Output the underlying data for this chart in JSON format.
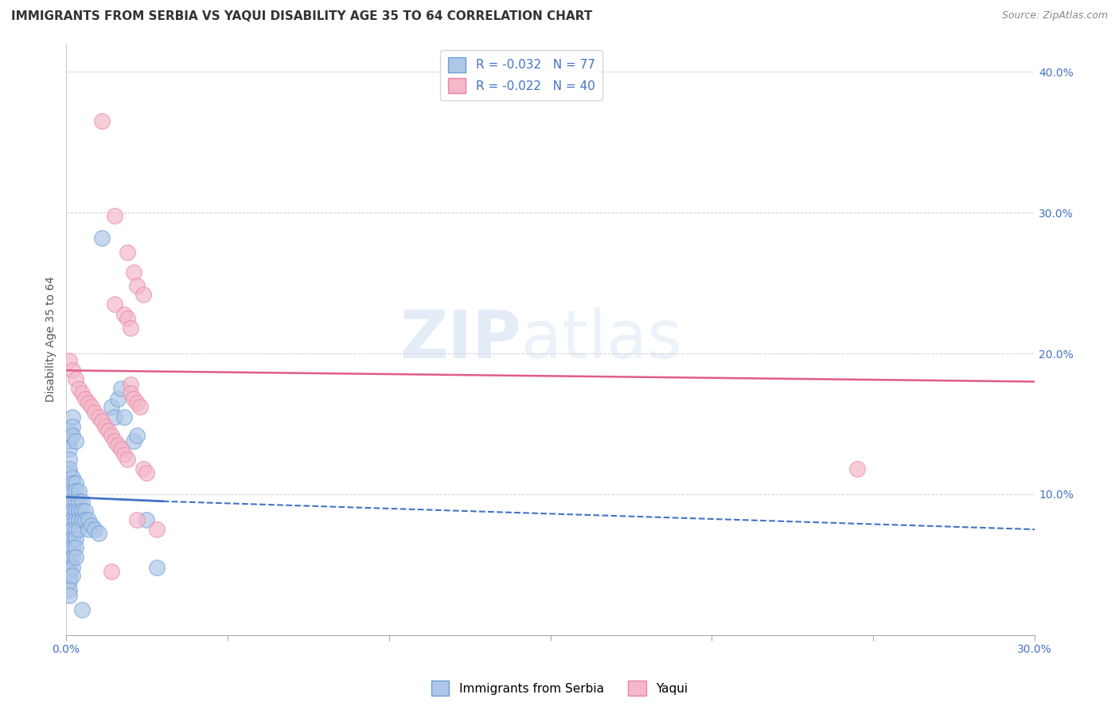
{
  "title": "IMMIGRANTS FROM SERBIA VS YAQUI DISABILITY AGE 35 TO 64 CORRELATION CHART",
  "source": "Source: ZipAtlas.com",
  "ylabel": "Disability Age 35 to 64",
  "xlim": [
    0.0,
    0.3
  ],
  "ylim": [
    0.0,
    0.42
  ],
  "xticks": [
    0.0,
    0.05,
    0.1,
    0.15,
    0.2,
    0.25,
    0.3
  ],
  "yticks": [
    0.0,
    0.1,
    0.2,
    0.3,
    0.4
  ],
  "ytick_labels_left": [
    "",
    "",
    "",
    "",
    ""
  ],
  "ytick_labels_right": [
    "",
    "10.0%",
    "20.0%",
    "30.0%",
    "40.0%"
  ],
  "xtick_labels": [
    "0.0%",
    "",
    "",
    "",
    "",
    "",
    "30.0%"
  ],
  "watermark": "ZIPatlas",
  "serbia_scatter": [
    [
      0.001,
      0.115
    ],
    [
      0.001,
      0.108
    ],
    [
      0.001,
      0.102
    ],
    [
      0.001,
      0.095
    ],
    [
      0.001,
      0.088
    ],
    [
      0.001,
      0.082
    ],
    [
      0.001,
      0.098
    ],
    [
      0.001,
      0.092
    ],
    [
      0.001,
      0.105
    ],
    [
      0.001,
      0.078
    ],
    [
      0.001,
      0.072
    ],
    [
      0.001,
      0.068
    ],
    [
      0.001,
      0.062
    ],
    [
      0.001,
      0.058
    ],
    [
      0.001,
      0.052
    ],
    [
      0.001,
      0.048
    ],
    [
      0.001,
      0.042
    ],
    [
      0.001,
      0.038
    ],
    [
      0.001,
      0.032
    ],
    [
      0.001,
      0.028
    ],
    [
      0.001,
      0.145
    ],
    [
      0.001,
      0.138
    ],
    [
      0.001,
      0.132
    ],
    [
      0.001,
      0.125
    ],
    [
      0.001,
      0.118
    ],
    [
      0.002,
      0.112
    ],
    [
      0.002,
      0.108
    ],
    [
      0.002,
      0.102
    ],
    [
      0.002,
      0.095
    ],
    [
      0.002,
      0.088
    ],
    [
      0.002,
      0.082
    ],
    [
      0.002,
      0.075
    ],
    [
      0.002,
      0.068
    ],
    [
      0.002,
      0.062
    ],
    [
      0.002,
      0.055
    ],
    [
      0.002,
      0.048
    ],
    [
      0.002,
      0.042
    ],
    [
      0.002,
      0.155
    ],
    [
      0.002,
      0.148
    ],
    [
      0.002,
      0.142
    ],
    [
      0.003,
      0.108
    ],
    [
      0.003,
      0.102
    ],
    [
      0.003,
      0.095
    ],
    [
      0.003,
      0.088
    ],
    [
      0.003,
      0.082
    ],
    [
      0.003,
      0.075
    ],
    [
      0.003,
      0.068
    ],
    [
      0.003,
      0.062
    ],
    [
      0.003,
      0.055
    ],
    [
      0.003,
      0.138
    ],
    [
      0.004,
      0.102
    ],
    [
      0.004,
      0.095
    ],
    [
      0.004,
      0.088
    ],
    [
      0.004,
      0.082
    ],
    [
      0.004,
      0.075
    ],
    [
      0.005,
      0.095
    ],
    [
      0.005,
      0.088
    ],
    [
      0.005,
      0.082
    ],
    [
      0.006,
      0.088
    ],
    [
      0.006,
      0.082
    ],
    [
      0.007,
      0.082
    ],
    [
      0.007,
      0.075
    ],
    [
      0.008,
      0.078
    ],
    [
      0.009,
      0.075
    ],
    [
      0.01,
      0.072
    ],
    [
      0.011,
      0.282
    ],
    [
      0.014,
      0.162
    ],
    [
      0.015,
      0.155
    ],
    [
      0.016,
      0.168
    ],
    [
      0.017,
      0.175
    ],
    [
      0.021,
      0.138
    ],
    [
      0.022,
      0.142
    ],
    [
      0.025,
      0.082
    ],
    [
      0.018,
      0.155
    ],
    [
      0.028,
      0.048
    ],
    [
      0.005,
      0.018
    ]
  ],
  "yaqui_scatter": [
    [
      0.011,
      0.365
    ],
    [
      0.015,
      0.298
    ],
    [
      0.019,
      0.272
    ],
    [
      0.021,
      0.258
    ],
    [
      0.022,
      0.248
    ],
    [
      0.024,
      0.242
    ],
    [
      0.015,
      0.235
    ],
    [
      0.018,
      0.228
    ],
    [
      0.019,
      0.225
    ],
    [
      0.02,
      0.218
    ],
    [
      0.001,
      0.195
    ],
    [
      0.002,
      0.188
    ],
    [
      0.003,
      0.182
    ],
    [
      0.004,
      0.175
    ],
    [
      0.005,
      0.172
    ],
    [
      0.006,
      0.168
    ],
    [
      0.007,
      0.165
    ],
    [
      0.008,
      0.162
    ],
    [
      0.009,
      0.158
    ],
    [
      0.01,
      0.155
    ],
    [
      0.011,
      0.152
    ],
    [
      0.012,
      0.148
    ],
    [
      0.013,
      0.145
    ],
    [
      0.014,
      0.142
    ],
    [
      0.015,
      0.138
    ],
    [
      0.016,
      0.135
    ],
    [
      0.017,
      0.132
    ],
    [
      0.018,
      0.128
    ],
    [
      0.019,
      0.125
    ],
    [
      0.02,
      0.178
    ],
    [
      0.02,
      0.172
    ],
    [
      0.021,
      0.168
    ],
    [
      0.022,
      0.165
    ],
    [
      0.023,
      0.162
    ],
    [
      0.245,
      0.118
    ],
    [
      0.024,
      0.118
    ],
    [
      0.025,
      0.115
    ],
    [
      0.022,
      0.082
    ],
    [
      0.028,
      0.075
    ],
    [
      0.014,
      0.045
    ]
  ],
  "serbia_line_solid": {
    "x": [
      0.0,
      0.03
    ],
    "y": [
      0.098,
      0.095
    ],
    "color": "#4472c4"
  },
  "serbia_line_dashed": {
    "x": [
      0.03,
      0.3
    ],
    "y": [
      0.095,
      0.075
    ],
    "color": "#4472c4"
  },
  "yaqui_line": {
    "x": [
      0.0,
      0.3
    ],
    "y": [
      0.188,
      0.18
    ],
    "color": "#e05c8a"
  },
  "serbia_color": "#aec6e8",
  "yaqui_color": "#f4b8c8",
  "serbia_marker_edge": "#6a9fd4",
  "yaqui_marker_edge": "#e884a8",
  "background_color": "#ffffff",
  "grid_color": "#d0d0d0",
  "title_fontsize": 11,
  "axis_label_fontsize": 10,
  "tick_fontsize": 10
}
